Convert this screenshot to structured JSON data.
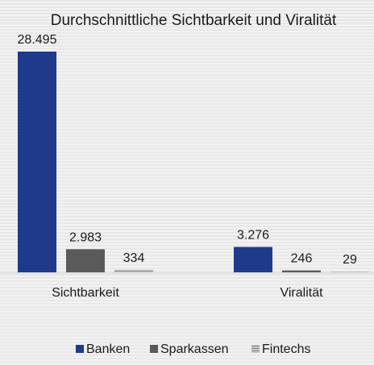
{
  "chart_data": {
    "type": "bar",
    "title": "Durchschnittliche Sichtbarkeit und Viralität",
    "categories": [
      "Sichtbarkeit",
      "Viralität"
    ],
    "series": [
      {
        "name": "Banken",
        "values": [
          28495,
          3276
        ],
        "labels": [
          "28.495",
          "3.276"
        ],
        "color": "#1f3a8a"
      },
      {
        "name": "Sparkassen",
        "values": [
          2983,
          246
        ],
        "labels": [
          "2.983",
          "246"
        ],
        "color": "#5a5a5a"
      },
      {
        "name": "Fintechs",
        "values": [
          334,
          29
        ],
        "labels": [
          "334",
          "29"
        ],
        "color": "#a8a8a8"
      }
    ],
    "ylim": [
      0,
      28495
    ],
    "grid": false,
    "legend_position": "bottom"
  }
}
